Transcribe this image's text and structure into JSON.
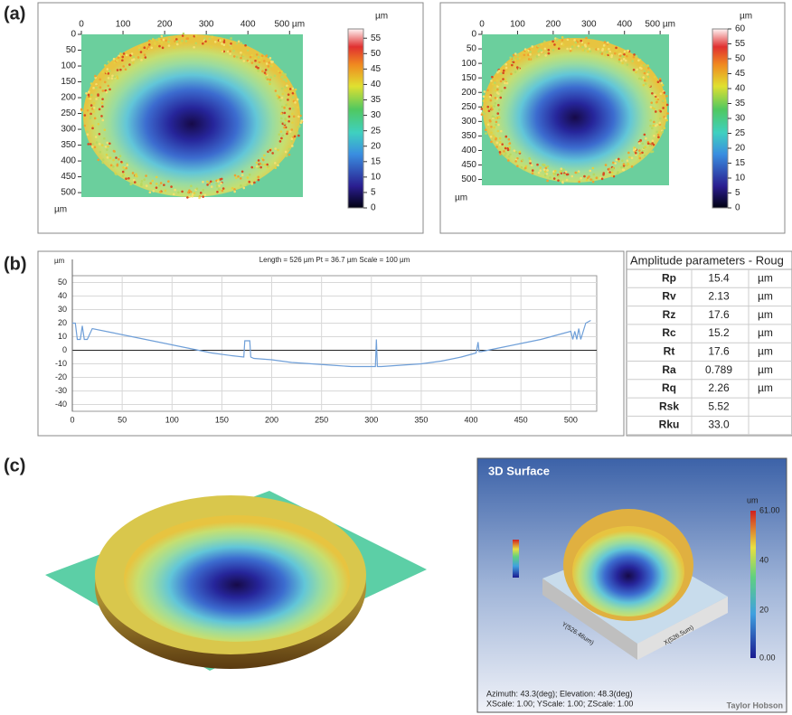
{
  "panel_labels": [
    "(a)",
    "(b)",
    "(c)"
  ],
  "chart_data": [
    {
      "type": "heatmap",
      "xlim": [
        0,
        532
      ],
      "xticks": [
        0,
        100,
        200,
        300,
        400,
        {
          "value": 500,
          "label": "500 µm"
        }
      ],
      "ylim": [
        0,
        514
      ],
      "yticks": [
        0,
        50,
        100,
        150,
        200,
        250,
        300,
        350,
        400,
        450,
        500
      ],
      "y_unit": "µm",
      "colorbar": {
        "unit": "µm",
        "lim": [
          0,
          58
        ],
        "ticks": [
          0,
          5,
          10,
          15,
          20,
          25,
          30,
          35,
          40,
          45,
          50,
          55
        ]
      }
    },
    {
      "type": "heatmap",
      "xlim": [
        0,
        525
      ],
      "xticks": [
        0,
        100,
        200,
        300,
        400,
        {
          "value": 500,
          "label": "500 µm"
        }
      ],
      "ylim": [
        0,
        520
      ],
      "yticks": [
        0,
        50,
        100,
        150,
        200,
        250,
        300,
        350,
        400,
        450,
        500
      ],
      "y_unit": "µm",
      "colorbar": {
        "unit": "µm",
        "lim": [
          0,
          60
        ],
        "ticks": [
          0,
          5,
          10,
          15,
          20,
          25,
          30,
          35,
          40,
          45,
          50,
          55,
          60
        ]
      }
    },
    {
      "type": "line",
      "title": "Length = 526 µm  Pt = 36.7 µm  Scale = 100 µm",
      "y_unit": "µm",
      "xlim": [
        0,
        526
      ],
      "xticks": [
        0,
        50,
        100,
        150,
        200,
        250,
        300,
        350,
        400,
        450,
        500
      ],
      "ylim": [
        -45,
        55
      ],
      "yticks": [
        50,
        40,
        30,
        20,
        10,
        0,
        -10,
        -20,
        -30,
        -40
      ],
      "grid": true,
      "color": "#6f9fd8",
      "x": [
        0,
        3,
        5,
        8,
        10,
        12,
        15,
        20,
        40,
        60,
        80,
        100,
        120,
        140,
        160,
        172,
        173,
        178,
        179,
        182,
        200,
        220,
        240,
        260,
        280,
        300,
        304,
        305,
        306,
        310,
        330,
        350,
        370,
        390,
        405,
        407,
        408,
        410,
        430,
        450,
        470,
        490,
        500,
        502,
        504,
        506,
        508,
        510,
        515,
        520
      ],
      "values": [
        20,
        20,
        8,
        8,
        18,
        8,
        8,
        16,
        13,
        10,
        7,
        4,
        1,
        -2,
        -4,
        -5,
        7,
        7,
        -5,
        -6,
        -7,
        -9,
        -10,
        -11,
        -12,
        -12,
        -12,
        8,
        -12,
        -12,
        -11,
        -10,
        -8,
        -5,
        -2,
        6,
        -1,
        -1,
        2,
        5,
        8,
        12,
        14,
        8,
        14,
        8,
        16,
        8,
        20,
        22
      ]
    }
  ],
  "table": {
    "header": "Amplitude parameters - Roug",
    "rows": [
      [
        "Rp",
        "15.4",
        "µm"
      ],
      [
        "Rv",
        "2.13",
        "µm"
      ],
      [
        "Rz",
        "17.6",
        "µm"
      ],
      [
        "Rc",
        "15.2",
        "µm"
      ],
      [
        "Rt",
        "17.6",
        "µm"
      ],
      [
        "Ra",
        "0.789",
        "µm"
      ],
      [
        "Rq",
        "2.26",
        "µm"
      ],
      [
        "Rsk",
        "5.52"
      ],
      [
        "Rku",
        "33.0"
      ]
    ]
  },
  "surface_3d": {
    "title": "3D Surface",
    "unit": "um",
    "scale_labels": [
      "61.00",
      "40",
      "20",
      "0.00"
    ],
    "y_axis": "Y(526.46um)",
    "x_axis": "X(526.5um)",
    "caption": [
      "Azimuth: 43.3(deg); Elevation: 48.3(deg)",
      "XScale: 1.00; YScale: 1.00; ZScale: 1.00"
    ],
    "brand": "Taylor Hobson"
  }
}
